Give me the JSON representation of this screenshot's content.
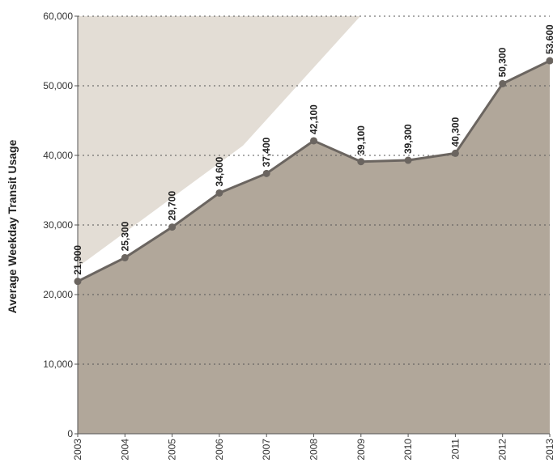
{
  "chart_data": {
    "type": "line",
    "y_label": "Average Weekday Transit Usage",
    "categories": [
      "2003",
      "2004",
      "2005",
      "2006",
      "2007",
      "2008",
      "2009",
      "2010",
      "2011",
      "2012",
      "2013"
    ],
    "values": [
      21900,
      25300,
      29700,
      34600,
      37400,
      42100,
      39100,
      39300,
      40300,
      50300,
      53600
    ],
    "value_labels": [
      "21,900",
      "25,300",
      "29,700",
      "34,600",
      "37,400",
      "42,100",
      "39,100",
      "39,300",
      "40,300",
      "50,300",
      "53,600"
    ],
    "color": "#6b6560",
    "area_color": "#a99d8f",
    "ylim": [
      0,
      60000
    ],
    "yticks": [
      0,
      {
        "value": 10000,
        "label": "10,000"
      },
      {
        "value": 20000,
        "label": "20,000"
      },
      {
        "value": 30000,
        "label": "30,000"
      },
      {
        "value": 40000,
        "label": "40,000"
      },
      {
        "value": 50000,
        "label": "50,000"
      },
      {
        "value": 60000,
        "label": "60,000"
      }
    ],
    "grid": true
  }
}
